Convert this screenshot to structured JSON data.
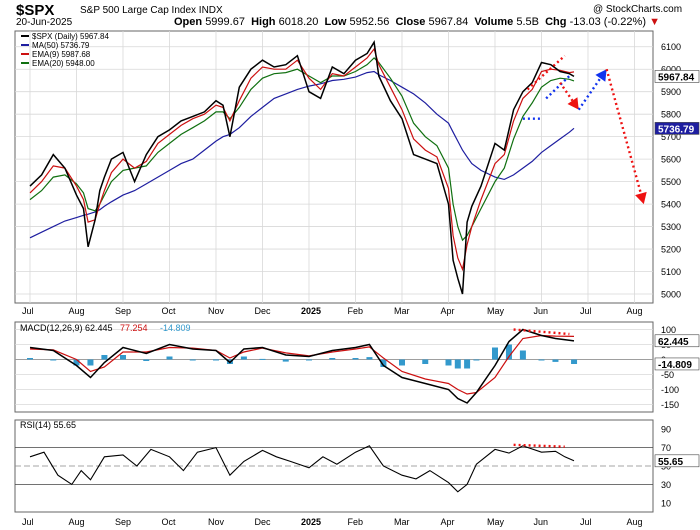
{
  "header": {
    "symbol": "$SPX",
    "name": "S&P 500 Large Cap Index",
    "exchange": "INDX",
    "attribution": "@ StockCharts.com",
    "date": "20-Jun-2025",
    "open_label": "Open",
    "open": "5999.67",
    "high_label": "High",
    "high": "6018.20",
    "low_label": "Low",
    "low": "5952.56",
    "close_label": "Close",
    "close": "5967.84",
    "volume_label": "Volume",
    "volume": "5.5B",
    "chg_label": "Chg",
    "chg": "-13.03 (-0.22%)",
    "chg_arrow": "▼"
  },
  "colors": {
    "price": "#000000",
    "ma50": "#1e1ea0",
    "ema9": "#cc1010",
    "ema20": "#107010",
    "arrow_red": "#ee1111",
    "arrow_blue": "#1133ee",
    "hist": "#3399cc",
    "grid": "#d8d8d8"
  },
  "chart_data": [
    {
      "type": "line",
      "panel": "price",
      "legend_position": "top-left",
      "legend": [
        {
          "label": "$SPX (Daily) 5967.84",
          "color": "#000000"
        },
        {
          "label": "MA(50) 5736.79",
          "color": "#1e1ea0"
        },
        {
          "label": "EMA(9) 5987.68",
          "color": "#cc1010"
        },
        {
          "label": "EMA(20) 5948.00",
          "color": "#107010"
        }
      ],
      "x_ticks": [
        "Jul",
        "Aug",
        "Sep",
        "Oct",
        "Nov",
        "Dec",
        "2025",
        "Feb",
        "Mar",
        "Apr",
        "May",
        "Jun",
        "Jul",
        "Aug"
      ],
      "x_tick_months": [
        0,
        1,
        2,
        3,
        4,
        5,
        6,
        7,
        8,
        9,
        10,
        11,
        12,
        13
      ],
      "y_ticks": [
        5000,
        5100,
        5200,
        5300,
        5400,
        5500,
        5600,
        5700,
        5800,
        5900,
        6000,
        6100
      ],
      "ylim": [
        4960,
        6170
      ],
      "last_value_labels": [
        {
          "text": "5967.84",
          "value": 5967.84
        },
        {
          "text": "5736.79",
          "value": 5736.79
        }
      ],
      "x_month_index": [
        0.0,
        0.25,
        0.5,
        0.75,
        1.0,
        1.15,
        1.25,
        1.4,
        1.5,
        1.6,
        1.75,
        2.0,
        2.25,
        2.5,
        2.75,
        3.0,
        3.25,
        3.5,
        3.75,
        4.0,
        4.15,
        4.3,
        4.5,
        4.75,
        5.0,
        5.25,
        5.5,
        5.75,
        6.0,
        6.25,
        6.5,
        6.75,
        7.0,
        7.25,
        7.4,
        7.5,
        7.75,
        8.0,
        8.25,
        8.5,
        8.75,
        9.0,
        9.1,
        9.2,
        9.3,
        9.4,
        9.5,
        9.7,
        10.0,
        10.2,
        10.4,
        10.6,
        10.8,
        11.0,
        11.2,
        11.4,
        11.6,
        11.7
      ],
      "series": [
        {
          "name": "$SPX (Daily)",
          "values": [
            5480,
            5530,
            5620,
            5560,
            5440,
            5380,
            5210,
            5330,
            5460,
            5520,
            5600,
            5630,
            5500,
            5620,
            5700,
            5730,
            5770,
            5790,
            5810,
            5860,
            5840,
            5700,
            5920,
            6000,
            6040,
            6010,
            6020,
            6060,
            5900,
            5870,
            6010,
            5980,
            6040,
            6070,
            6120,
            5970,
            5860,
            5780,
            5620,
            5600,
            5580,
            5400,
            5150,
            5070,
            5000,
            5320,
            5390,
            5480,
            5670,
            5640,
            5820,
            5900,
            5940,
            6030,
            6020,
            5990,
            5980,
            5968
          ]
        },
        {
          "name": "MA(50)",
          "values": [
            5250,
            5275,
            5300,
            5325,
            5340,
            5350,
            5355,
            5365,
            5375,
            5390,
            5410,
            5440,
            5460,
            5490,
            5520,
            5550,
            5580,
            5600,
            5640,
            5680,
            5700,
            5710,
            5740,
            5790,
            5830,
            5870,
            5890,
            5910,
            5925,
            5935,
            5950,
            5955,
            5965,
            5985,
            5990,
            5975,
            5950,
            5920,
            5890,
            5850,
            5800,
            5760,
            5720,
            5680,
            5640,
            5610,
            5580,
            5550,
            5520,
            5510,
            5530,
            5560,
            5590,
            5630,
            5660,
            5690,
            5720,
            5737
          ]
        },
        {
          "name": "EMA(9)",
          "values": [
            5450,
            5500,
            5570,
            5560,
            5480,
            5420,
            5320,
            5330,
            5400,
            5460,
            5540,
            5600,
            5560,
            5590,
            5670,
            5710,
            5750,
            5780,
            5800,
            5840,
            5830,
            5770,
            5860,
            5960,
            6010,
            6000,
            6000,
            6040,
            5960,
            5910,
            5980,
            5970,
            6010,
            6050,
            6090,
            6020,
            5920,
            5820,
            5690,
            5640,
            5610,
            5470,
            5260,
            5160,
            5110,
            5220,
            5300,
            5420,
            5580,
            5620,
            5770,
            5870,
            5910,
            5990,
            6000,
            5995,
            5985,
            5988
          ]
        },
        {
          "name": "EMA(20)",
          "values": [
            5420,
            5460,
            5520,
            5530,
            5490,
            5450,
            5380,
            5370,
            5400,
            5440,
            5500,
            5550,
            5560,
            5570,
            5630,
            5670,
            5710,
            5740,
            5770,
            5810,
            5810,
            5780,
            5830,
            5910,
            5960,
            5980,
            5985,
            6000,
            5970,
            5940,
            5970,
            5970,
            5990,
            6020,
            6050,
            6030,
            5960,
            5880,
            5760,
            5700,
            5660,
            5560,
            5400,
            5300,
            5240,
            5260,
            5300,
            5380,
            5500,
            5560,
            5690,
            5790,
            5850,
            5920,
            5950,
            5960,
            5955,
            5948
          ]
        }
      ],
      "annotations": [
        {
          "kind": "dotted-line",
          "color": "red",
          "from": [
            10.7,
            5910
          ],
          "to": [
            11.5,
            6060
          ]
        },
        {
          "kind": "dotted-line",
          "color": "blue",
          "from": [
            11.1,
            5870
          ],
          "to": [
            11.6,
            5970
          ]
        },
        {
          "kind": "dotted-line",
          "color": "blue",
          "from": [
            10.6,
            5780
          ],
          "to": [
            11.0,
            5780
          ]
        },
        {
          "kind": "arrow",
          "color": "red",
          "from": [
            11.4,
            5940
          ],
          "to": [
            11.8,
            5820
          ]
        },
        {
          "kind": "arrow",
          "color": "blue",
          "from": [
            11.8,
            5820
          ],
          "to": [
            12.4,
            6000
          ]
        },
        {
          "kind": "arrow",
          "color": "red",
          "from": [
            12.4,
            6000
          ],
          "to": [
            13.2,
            5400
          ]
        }
      ]
    },
    {
      "type": "line",
      "panel": "macd",
      "legend": [
        {
          "label": "MACD(12,26,9)",
          "color": "#000000"
        },
        {
          "label": "62.445",
          "color": "#000000"
        },
        {
          "label": "77.254",
          "color": "#cc1010"
        },
        {
          "label": "-14.809",
          "color": "#3399cc"
        }
      ],
      "y_ticks": [
        -150,
        -100,
        -50,
        0,
        50,
        100
      ],
      "ylim": [
        -175,
        125
      ],
      "last_value_labels": [
        {
          "text": "62.445",
          "value": 62.445
        },
        {
          "text": "-14.809",
          "value": -14.809
        }
      ],
      "x_month_index": [
        0.0,
        0.5,
        1.0,
        1.3,
        1.6,
        2.0,
        2.5,
        3.0,
        3.5,
        4.0,
        4.3,
        4.6,
        5.0,
        5.5,
        6.0,
        6.5,
        7.0,
        7.3,
        7.6,
        8.0,
        8.5,
        9.0,
        9.2,
        9.4,
        9.6,
        10.0,
        10.3,
        10.6,
        11.0,
        11.3,
        11.7
      ],
      "series": [
        {
          "name": "MACD",
          "values": [
            40,
            30,
            -20,
            -60,
            -10,
            40,
            20,
            50,
            35,
            30,
            -10,
            35,
            40,
            15,
            10,
            30,
            40,
            50,
            -20,
            -60,
            -80,
            -100,
            -130,
            -145,
            -110,
            -20,
            60,
            100,
            80,
            70,
            62
          ]
        },
        {
          "name": "Signal",
          "values": [
            35,
            32,
            0,
            -40,
            -25,
            25,
            25,
            40,
            38,
            30,
            5,
            25,
            38,
            22,
            12,
            25,
            35,
            42,
            5,
            -40,
            -65,
            -80,
            -100,
            -115,
            -110,
            -60,
            10,
            70,
            80,
            78,
            77
          ]
        },
        {
          "name": "Histogram",
          "values": [
            5,
            -2,
            -20,
            -20,
            15,
            15,
            -5,
            10,
            -3,
            0,
            -15,
            10,
            2,
            -7,
            -2,
            5,
            5,
            8,
            -25,
            -20,
            -15,
            -20,
            -30,
            -30,
            0,
            40,
            50,
            30,
            0,
            -8,
            -15
          ]
        }
      ],
      "annotations": [
        {
          "kind": "dotted-line",
          "color": "red",
          "from": [
            10.4,
            100
          ],
          "to": [
            11.6,
            85
          ]
        }
      ]
    },
    {
      "type": "line",
      "panel": "rsi",
      "legend": [
        {
          "label": "RSI(14) 55.65",
          "color": "#000000"
        }
      ],
      "y_ticks": [
        10,
        30,
        50,
        70,
        90
      ],
      "ylim": [
        0,
        100
      ],
      "reference_lines": [
        70,
        50,
        30
      ],
      "last_value_labels": [
        {
          "text": "55.65",
          "value": 55.65
        }
      ],
      "x_month_index": [
        0.0,
        0.3,
        0.6,
        0.9,
        1.1,
        1.3,
        1.6,
        2.0,
        2.3,
        2.6,
        3.0,
        3.3,
        3.6,
        4.0,
        4.3,
        4.6,
        5.0,
        5.3,
        5.6,
        6.0,
        6.3,
        6.6,
        7.0,
        7.3,
        7.6,
        8.0,
        8.3,
        8.6,
        9.0,
        9.2,
        9.4,
        9.6,
        10.0,
        10.3,
        10.6,
        11.0,
        11.3,
        11.5,
        11.7
      ],
      "series": [
        {
          "name": "RSI(14)",
          "values": [
            60,
            65,
            40,
            30,
            45,
            35,
            60,
            62,
            50,
            68,
            60,
            45,
            65,
            70,
            40,
            55,
            67,
            60,
            55,
            48,
            60,
            52,
            65,
            72,
            50,
            40,
            36,
            45,
            32,
            22,
            30,
            52,
            68,
            64,
            72,
            65,
            66,
            60,
            55.65
          ]
        }
      ],
      "annotations": [
        {
          "kind": "dotted-line",
          "color": "red",
          "from": [
            10.4,
            73
          ],
          "to": [
            11.5,
            71
          ]
        }
      ]
    }
  ]
}
